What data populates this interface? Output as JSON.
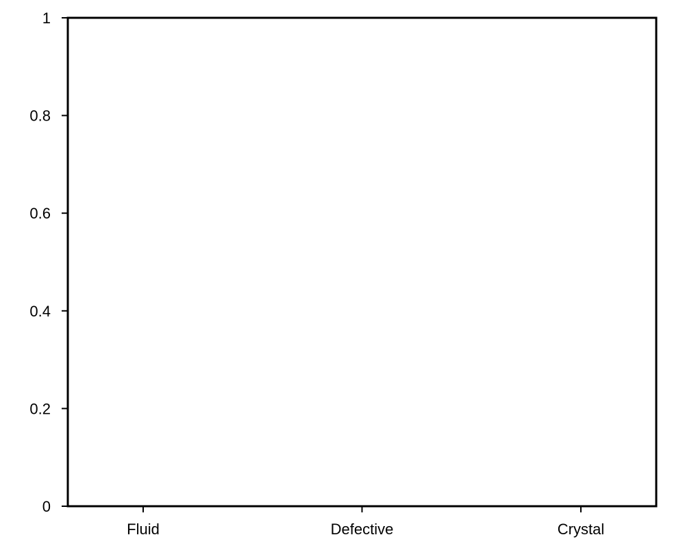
{
  "chart_data": {
    "type": "bar",
    "title": "",
    "xlabel": "",
    "ylabel": "",
    "categories": [
      "Fluid",
      "Defective",
      "Crystal"
    ],
    "values": [
      0,
      0,
      0
    ],
    "ylim": [
      0,
      1
    ],
    "yticks": [
      0,
      0.2,
      0.4,
      0.6,
      0.8,
      1
    ],
    "ytick_labels": [
      "0",
      "0.2",
      "0.4",
      "0.6",
      "0.8",
      "1"
    ],
    "grid": false,
    "legend": "none"
  },
  "style": {
    "axis_color": "#000000",
    "background": "#ffffff"
  }
}
